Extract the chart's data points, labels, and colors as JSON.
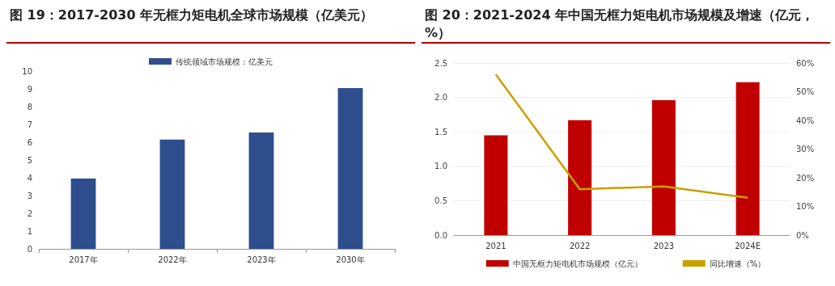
{
  "chart_data": [
    {
      "type": "bar",
      "title": "图 19：2017-2030 年无框力矩电机全球市场规模（亿美元）",
      "categories": [
        "2017年",
        "2022年",
        "2023年",
        "2030年"
      ],
      "series": [
        {
          "name": "传统领域市场规模：亿美元",
          "color": "#2f4e8e",
          "values": [
            3.95,
            6.15,
            6.55,
            9.05
          ]
        }
      ],
      "ylim": [
        0,
        10
      ],
      "yticks": [
        0,
        1,
        2,
        3,
        4,
        5,
        6,
        7,
        8,
        9,
        10
      ],
      "grid": false,
      "legend": "top"
    },
    {
      "type": "bar",
      "title": "图 20：2021-2024 年中国无框力矩电机市场规模及增速（亿元，%）",
      "categories": [
        "2021",
        "2022",
        "2023",
        "2024E"
      ],
      "series": [
        {
          "name": "中国无框力矩电机市场规模（亿元）",
          "color": "#c00000",
          "values": [
            1.45,
            1.67,
            1.96,
            2.22
          ]
        },
        {
          "name": "同比增速（%）",
          "type": "line",
          "axis": "y2",
          "color": "#c9a000",
          "values": [
            56,
            16,
            17,
            13
          ]
        }
      ],
      "ylim": [
        0,
        2.5
      ],
      "yticks": [
        {
          "value": 0,
          "label": "0.0"
        },
        {
          "value": 0.5,
          "label": "0.5"
        },
        {
          "value": 1,
          "label": "1.0"
        },
        {
          "value": 1.5,
          "label": "1.5"
        },
        {
          "value": 2,
          "label": "2.0"
        },
        {
          "value": 2.5,
          "label": "2.5"
        }
      ],
      "y2lim": [
        0,
        60
      ],
      "y2ticks": [
        {
          "value": 0,
          "label": "0%"
        },
        {
          "value": 10,
          "label": "10%"
        },
        {
          "value": 20,
          "label": "20%"
        },
        {
          "value": 30,
          "label": "30%"
        },
        {
          "value": 40,
          "label": "40%"
        },
        {
          "value": 50,
          "label": "50%"
        },
        {
          "value": 60,
          "label": "60%"
        }
      ],
      "grid": "y",
      "legend": "bottom",
      "marker": "none"
    }
  ]
}
